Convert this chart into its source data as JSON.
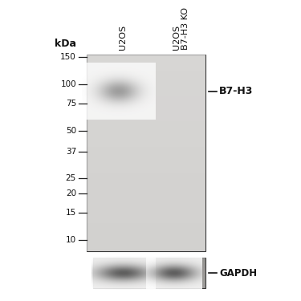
{
  "background_color": "#ffffff",
  "kda_values": [
    150,
    100,
    75,
    50,
    37,
    25,
    20,
    15,
    10
  ],
  "kda_axis_label": "kDa",
  "band_label": "B7-H3",
  "band_kda": 90,
  "gapdh_label": "GAPDH",
  "lane1_label": "U2OS",
  "lane2_label_line1": "U2OS",
  "lane2_label_line2": "B7-H3 KO",
  "blot_bg": "#d4d0ca",
  "gapdh_bg": "#9a9080",
  "band_color": "#606060",
  "gapdh_band_color": "#303030"
}
